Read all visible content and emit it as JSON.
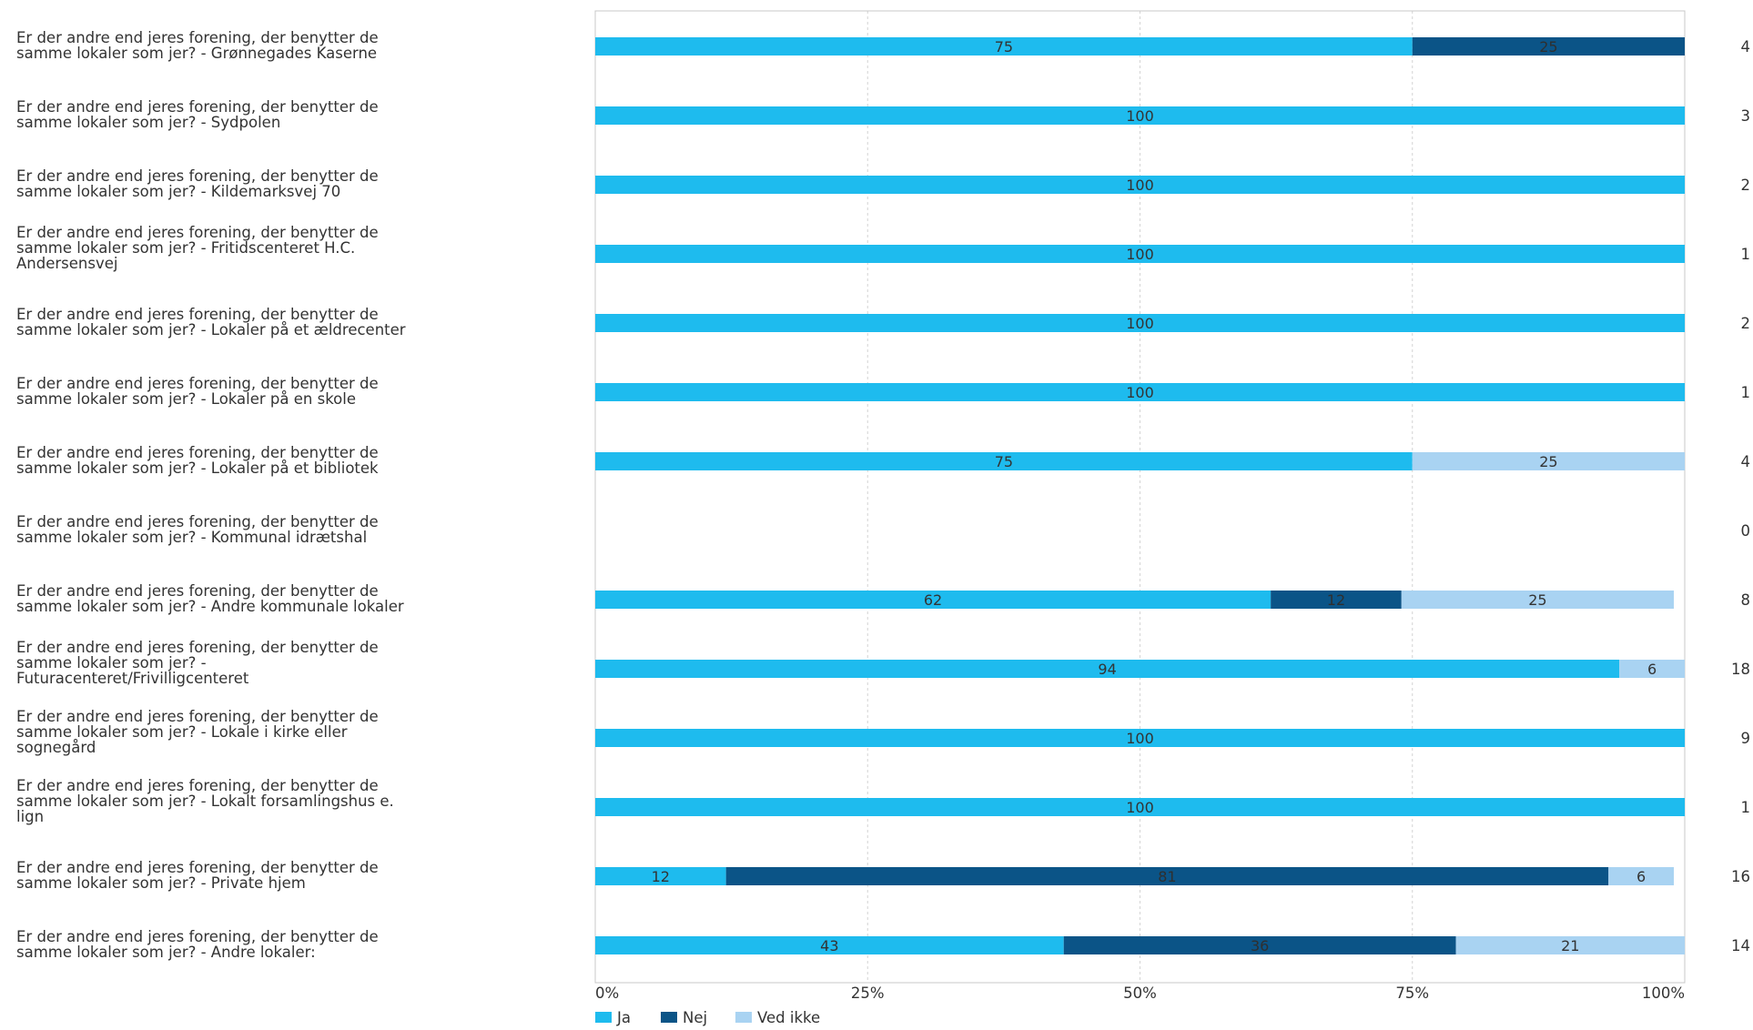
{
  "chart_data": {
    "type": "bar",
    "orientation": "horizontal",
    "stacked": true,
    "title": "",
    "xlabel": "",
    "ylabel": "",
    "xlim": [
      0,
      100
    ],
    "x_ticks": [
      0,
      25,
      50,
      75,
      100
    ],
    "x_tick_labels": [
      "0%",
      "25%",
      "50%",
      "75%",
      "100%"
    ],
    "grid": true,
    "legend_position": "bottom-left",
    "categories": [
      [
        "Er der andre end jeres forening, der benytter de",
        "samme lokaler som jer? - Grønnegades Kaserne"
      ],
      [
        "Er der andre end jeres forening, der benytter de",
        "samme lokaler som jer? - Sydpolen"
      ],
      [
        "Er der andre end jeres forening, der benytter de",
        "samme lokaler som jer? - Kildemarksvej 70"
      ],
      [
        "Er der andre end jeres forening, der benytter de",
        "samme lokaler som jer? - Fritidscenteret H.C.",
        "Andersensvej"
      ],
      [
        "Er der andre end jeres forening, der benytter de",
        "samme lokaler som jer? - Lokaler på et ældrecenter"
      ],
      [
        "Er der andre end jeres forening, der benytter de",
        "samme lokaler som jer? - Lokaler på en skole"
      ],
      [
        "Er der andre end jeres forening, der benytter de",
        "samme lokaler som jer? - Lokaler på et bibliotek"
      ],
      [
        "Er der andre end jeres forening, der benytter de",
        "samme lokaler som jer? - Kommunal idrætshal"
      ],
      [
        "Er der andre end jeres forening, der benytter de",
        "samme lokaler som jer? - Andre kommunale lokaler"
      ],
      [
        "Er der andre end jeres forening, der benytter de",
        "samme lokaler som jer? -",
        "Futuracenteret/Frivilligcenteret"
      ],
      [
        "Er der andre end jeres forening, der benytter de",
        "samme lokaler som jer? - Lokale i kirke eller",
        "sognegård"
      ],
      [
        "Er der andre end jeres forening, der benytter de",
        "samme lokaler som jer? - Lokalt forsamlingshus e.",
        "lign"
      ],
      [
        "Er der andre end jeres forening, der benytter de",
        "samme lokaler som jer? - Private hjem"
      ],
      [
        "Er der andre end jeres forening, der benytter de",
        "samme lokaler som jer? - Andre lokaler:"
      ]
    ],
    "series": [
      {
        "name": "Ja",
        "color": "#1ebbee",
        "values": [
          75,
          100,
          100,
          100,
          100,
          100,
          75,
          0,
          62,
          94,
          100,
          100,
          12,
          43
        ]
      },
      {
        "name": "Nej",
        "color": "#0b5487",
        "values": [
          25,
          0,
          0,
          0,
          0,
          0,
          0,
          0,
          12,
          0,
          0,
          0,
          81,
          36
        ]
      },
      {
        "name": "Ved ikke",
        "color": "#a9d3f2",
        "values": [
          0,
          0,
          0,
          0,
          0,
          0,
          25,
          0,
          25,
          6,
          0,
          0,
          6,
          21
        ]
      }
    ],
    "counts": [
      4,
      3,
      2,
      1,
      2,
      1,
      4,
      0,
      8,
      18,
      9,
      1,
      16,
      14
    ]
  }
}
